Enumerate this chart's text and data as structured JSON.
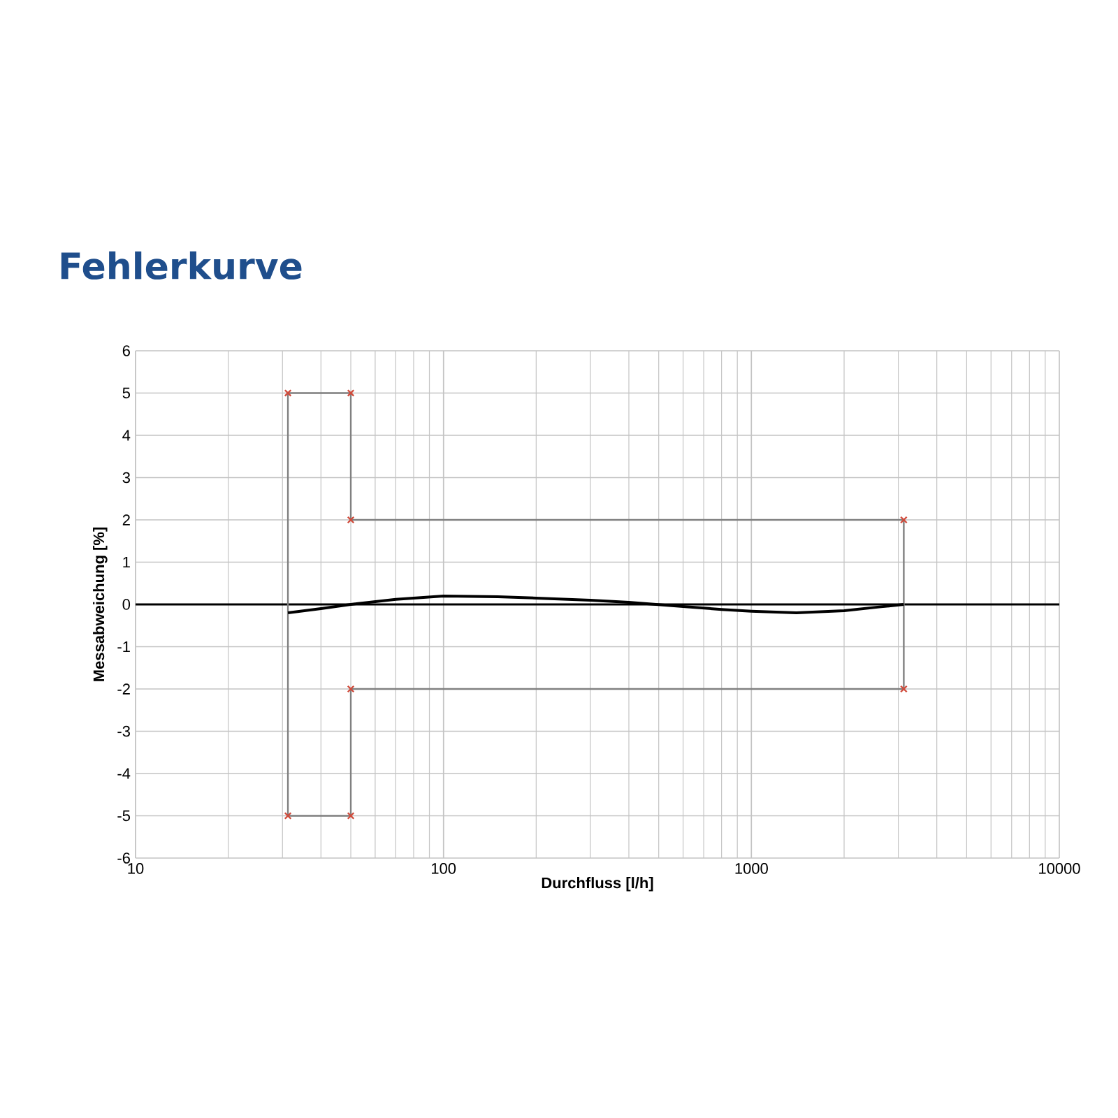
{
  "chart_data": {
    "type": "line",
    "title": "Fehlerkurve",
    "xlabel": "Durchfluss [l/h]",
    "ylabel": "Messabweichung [%]",
    "log": "x",
    "grid": true,
    "xlim": [
      10,
      10000
    ],
    "xticks": [
      10,
      100,
      1000,
      10000
    ],
    "ylim": [
      -6,
      6
    ],
    "yticks": [
      -6,
      -5,
      -4,
      -3,
      -2,
      -1,
      0,
      1,
      2,
      3,
      4,
      5,
      6
    ],
    "ref_lines": [
      {
        "axis": "y",
        "value": 0,
        "color": "#000000"
      }
    ],
    "series": [
      {
        "type": "scatter",
        "color": "#d04a3a",
        "marker": "cross",
        "x": [
          31.25,
          50,
          50,
          3125,
          3125,
          50,
          50,
          31.25
        ],
        "values": [
          5,
          5,
          2,
          2,
          -2,
          -2,
          -5,
          -5
        ]
      },
      {
        "color": "#808080",
        "marker": "none",
        "x": [
          31.25,
          31.25,
          50,
          50,
          3125,
          3125
        ],
        "values": [
          -5,
          5,
          5,
          2,
          2,
          -2
        ]
      },
      {
        "color": "#808080",
        "marker": "none",
        "x": [
          3125,
          50,
          50,
          31.25
        ],
        "values": [
          -2,
          -2,
          -5,
          -5
        ]
      },
      {
        "color": "#000000",
        "marker": "none",
        "x": [
          31.25,
          40,
          50,
          70,
          100,
          150,
          200,
          300,
          400,
          600,
          800,
          1000,
          1400,
          2000,
          2600,
          3125
        ],
        "values": [
          -0.2,
          -0.1,
          0,
          0.12,
          0.2,
          0.18,
          0.15,
          0.1,
          0.05,
          -0.05,
          -0.12,
          -0.16,
          -0.2,
          -0.15,
          -0.06,
          0
        ]
      }
    ]
  }
}
